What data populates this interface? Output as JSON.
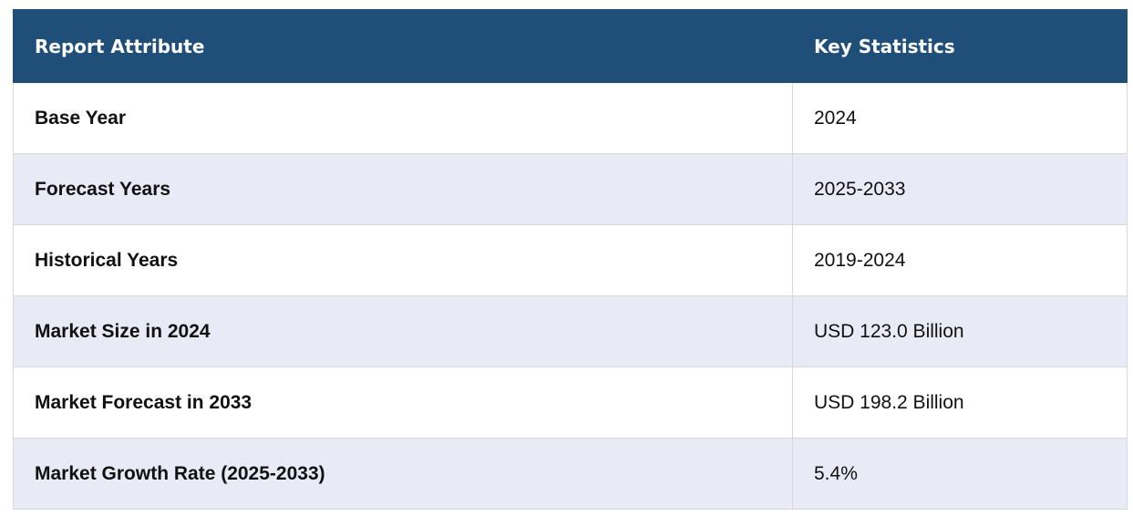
{
  "table": {
    "headers": {
      "attribute": "Report Attribute",
      "statistics": "Key Statistics"
    },
    "rows": [
      {
        "attribute": "Base Year",
        "value": "2024"
      },
      {
        "attribute": "Forecast Years",
        "value": "2025-2033"
      },
      {
        "attribute": "Historical Years",
        "value": "2019-2024"
      },
      {
        "attribute": "Market Size in 2024",
        "value": "USD 123.0 Billion"
      },
      {
        "attribute": "Market Forecast in 2033",
        "value": "USD 198.2 Billion"
      },
      {
        "attribute": "Market Growth Rate (2025-2033)",
        "value": "5.4%"
      }
    ]
  },
  "colors": {
    "header_bg": "#1f4e79",
    "header_text": "#ffffff",
    "stripe_bg": "#e8eaf6",
    "row_bg": "#ffffff",
    "border": "#d9d9d9"
  }
}
